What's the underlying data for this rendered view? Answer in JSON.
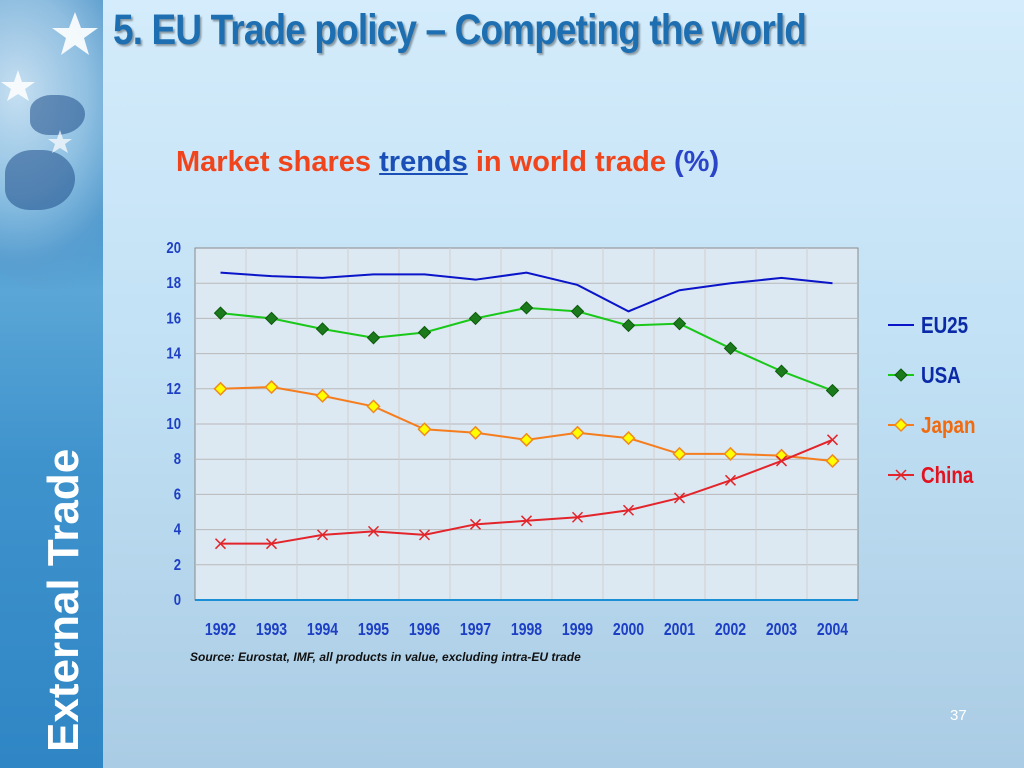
{
  "slide_title": "5. EU Trade policy – Competing the world",
  "sidebar_text": "External Trade",
  "chart_title": {
    "part1": "Market shares ",
    "part2": "trends",
    "part3": " in world trade ",
    "part4": "(%)"
  },
  "source_note": "Source: Eurostat, IMF, all products in value, excluding intra-EU trade",
  "page_number": "37",
  "chart_data": {
    "type": "line",
    "title": "Market shares trends in world trade (%)",
    "categories": [
      "1992",
      "1993",
      "1994",
      "1995",
      "1996",
      "1997",
      "1998",
      "1999",
      "2000",
      "2001",
      "2002",
      "2003",
      "2004"
    ],
    "ylim": [
      0,
      20
    ],
    "yticks": [
      0,
      2,
      4,
      6,
      8,
      10,
      12,
      14,
      16,
      18,
      20
    ],
    "grid": true,
    "legend_position": "right",
    "series": [
      {
        "name": "EU25",
        "color": "#0a14c8",
        "marker": "none",
        "values": [
          18.6,
          18.4,
          18.3,
          18.5,
          18.5,
          18.2,
          18.6,
          17.9,
          16.4,
          17.6,
          18.0,
          18.3,
          18.0
        ]
      },
      {
        "name": "USA",
        "color": "#19c819",
        "marker": "diamond-filled",
        "values": [
          16.3,
          16.0,
          15.4,
          14.9,
          15.2,
          16.0,
          16.6,
          16.4,
          15.6,
          15.7,
          14.3,
          13.0,
          11.9
        ]
      },
      {
        "name": "Japan",
        "color": "#f57d1e",
        "marker": "diamond-yellow",
        "values": [
          12.0,
          12.1,
          11.6,
          11.0,
          9.7,
          9.5,
          9.1,
          9.5,
          9.2,
          8.3,
          8.3,
          8.2,
          7.9
        ]
      },
      {
        "name": "China",
        "color": "#e3242b",
        "marker": "x",
        "values": [
          3.2,
          3.2,
          3.7,
          3.9,
          3.7,
          4.3,
          4.5,
          4.7,
          5.1,
          5.8,
          6.8,
          7.9,
          9.1
        ]
      }
    ]
  }
}
